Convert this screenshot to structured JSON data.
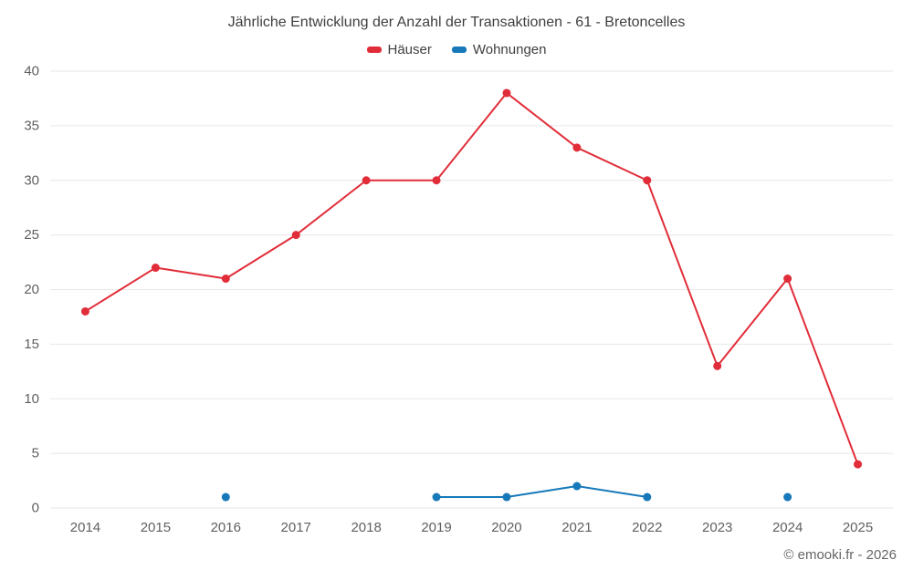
{
  "title": "Jährliche Entwicklung der Anzahl der Transaktionen - 61 - Bretoncelles",
  "legend": [
    {
      "label": "Häuser",
      "color": "#e12d39"
    },
    {
      "label": "Wohnungen",
      "color": "#1779ba"
    }
  ],
  "footer": "© emooki.fr - 2026",
  "colors": {
    "grid": "#e7e7e7",
    "tick_label": "#606060",
    "title_text": "#3f3f3f"
  },
  "chart_data": {
    "type": "line",
    "title": "Jährliche Entwicklung der Anzahl der Transaktionen - 61 - Bretoncelles",
    "categories": [
      "2014",
      "2015",
      "2016",
      "2017",
      "2018",
      "2019",
      "2020",
      "2021",
      "2022",
      "2023",
      "2024",
      "2025"
    ],
    "series": [
      {
        "name": "Häuser",
        "slug": "haeuser",
        "color": "#e12d39",
        "values": [
          18,
          22,
          21,
          25,
          30,
          30,
          38,
          33,
          30,
          13,
          21,
          4
        ]
      },
      {
        "name": "Wohnungen",
        "slug": "wohnungen",
        "color": "#1779ba",
        "values": [
          null,
          null,
          1,
          null,
          null,
          1,
          1,
          2,
          1,
          null,
          1,
          null
        ]
      }
    ],
    "xlabel": "",
    "ylabel": "",
    "ylim": [
      0,
      40
    ],
    "ytick_step": 5,
    "grid": true,
    "legend_position": "top"
  }
}
